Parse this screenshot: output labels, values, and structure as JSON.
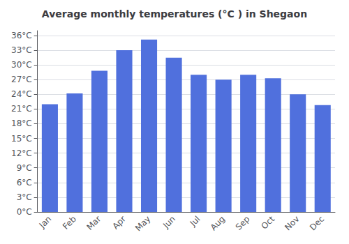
{
  "chart_data": {
    "type": "bar",
    "title": "Average monthly temperatures (°C ) in Shegaon",
    "categories": [
      "Jan",
      "Feb",
      "Mar",
      "Apr",
      "May",
      "Jun",
      "Jul",
      "Aug",
      "Sep",
      "Oct",
      "Nov",
      "Dec"
    ],
    "values": [
      22.0,
      24.2,
      28.8,
      33.0,
      35.2,
      31.5,
      28.0,
      27.0,
      28.0,
      27.3,
      24.0,
      21.8
    ],
    "ylim": [
      0,
      37
    ],
    "yticks": [
      {
        "value": 0,
        "label": "0°C"
      },
      {
        "value": 3,
        "label": "3°C"
      },
      {
        "value": 6,
        "label": "6°C"
      },
      {
        "value": 9,
        "label": "9°C"
      },
      {
        "value": 12,
        "label": "12°C"
      },
      {
        "value": 15,
        "label": "15°C"
      },
      {
        "value": 18,
        "label": "18°C"
      },
      {
        "value": 21,
        "label": "21°C"
      },
      {
        "value": 24,
        "label": "24°C"
      },
      {
        "value": 27,
        "label": "27°C"
      },
      {
        "value": 30,
        "label": "30°C"
      },
      {
        "value": 33,
        "label": "33°C"
      },
      {
        "value": 36,
        "label": "36°C"
      }
    ],
    "grid": true
  }
}
